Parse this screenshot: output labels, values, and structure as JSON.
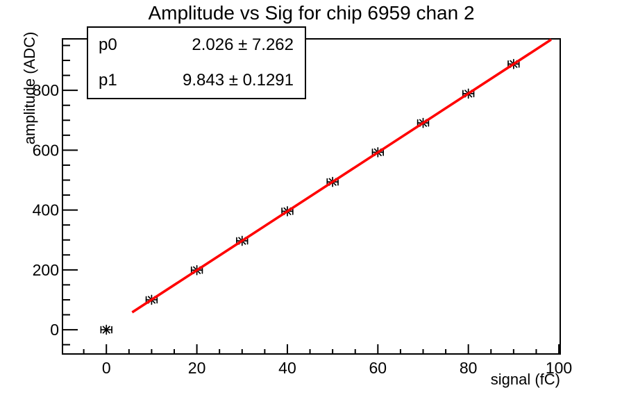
{
  "chart_data": {
    "type": "scatter",
    "title": "Amplitude vs Sig for chip 6959 chan 2",
    "xlabel": "signal (fC)",
    "ylabel": "amplitude (ADC)",
    "xlim": [
      -9.7,
      100.3
    ],
    "ylim": [
      -81,
      972
    ],
    "grid": false,
    "legend": null,
    "x_ticks": {
      "major_labels": [
        0,
        20,
        40,
        60,
        80,
        100
      ],
      "major_step": 20,
      "minor_step": 5
    },
    "y_ticks": {
      "major_labels": [
        0,
        200,
        400,
        600,
        800
      ],
      "major_step": 200,
      "minor_step": 50
    },
    "points": {
      "x": [
        0,
        10,
        20,
        30,
        40,
        50,
        60,
        70,
        80,
        90
      ],
      "y": [
        0,
        100,
        199,
        297,
        396,
        494,
        593,
        691,
        789,
        888
      ],
      "xerr": 1.2,
      "marker": "star",
      "color": "#000000"
    },
    "fit": {
      "type": "pol1",
      "p0": 2.026,
      "p1": 9.843,
      "x_range": [
        5.7,
        98.3
      ],
      "color": "#ff0000"
    }
  },
  "stats": {
    "rows": [
      {
        "name": "p0",
        "value": "2.026 ± 7.262"
      },
      {
        "name": "p1",
        "value": "9.843 ± 0.1291"
      }
    ]
  },
  "colors": {
    "fit_line": "#ff0000",
    "axes": "#000000",
    "background": "#ffffff"
  }
}
